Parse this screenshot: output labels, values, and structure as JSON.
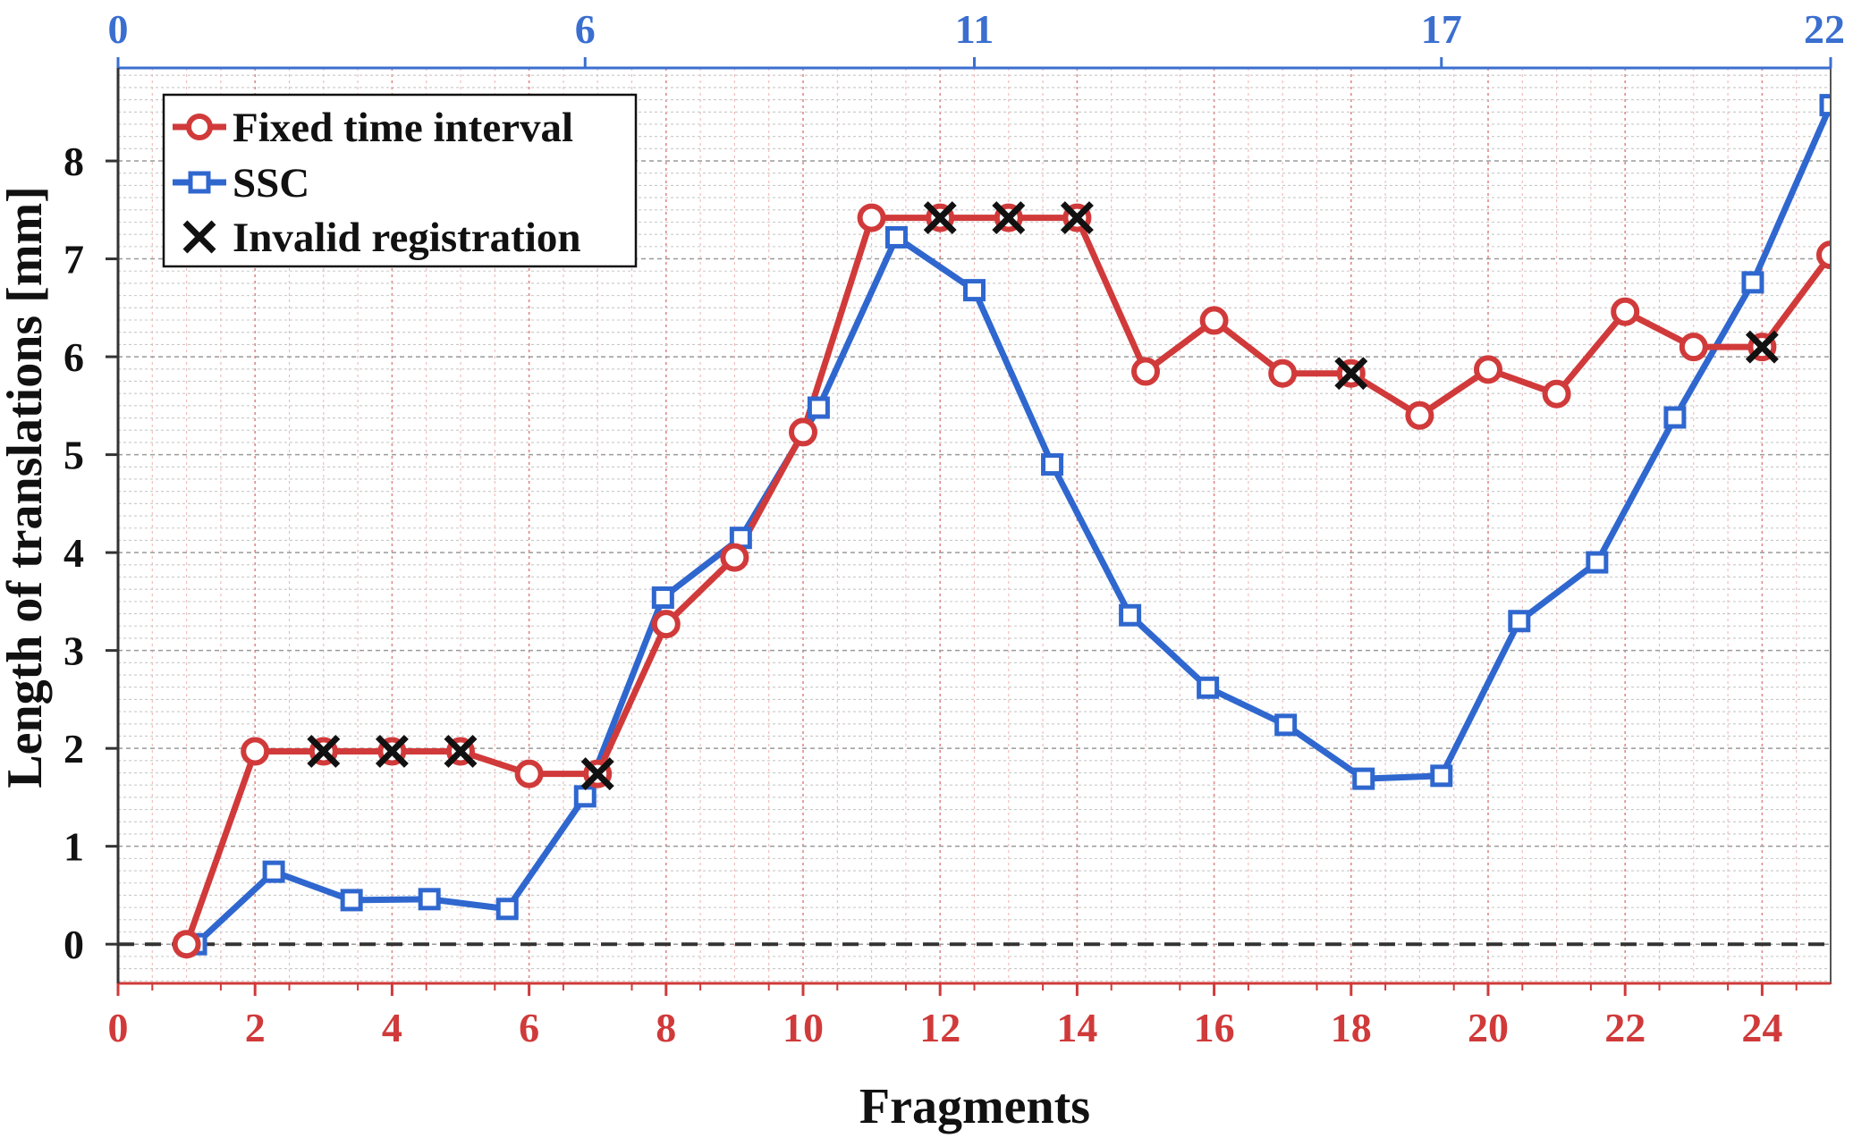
{
  "chart_data": {
    "type": "line",
    "xlabel": "Fragments",
    "ylabel": "Length of translations  [mm]",
    "xlim": [
      0,
      25
    ],
    "ylim": [
      -0.4,
      8.95
    ],
    "x_ticks": [
      0,
      2,
      4,
      6,
      8,
      10,
      12,
      14,
      16,
      18,
      20,
      22,
      24
    ],
    "y_ticks": [
      0,
      1,
      2,
      3,
      4,
      5,
      6,
      7,
      8
    ],
    "top_axis": {
      "xlim": [
        0,
        22
      ],
      "ticks": [
        0,
        6,
        11,
        17,
        22
      ]
    },
    "grid": true,
    "zero_line": true,
    "legend_position": "top-left",
    "colors": {
      "fixed": "#d13a3a",
      "ssc": "#2f67cf",
      "invalid": "#111111",
      "bottom_ticks": "#d03a3a",
      "top_ticks": "#3a6fd0"
    },
    "series": [
      {
        "name": "Fixed time interval",
        "marker": "circle",
        "axis": "bottom",
        "x": [
          1,
          2,
          3,
          4,
          5,
          6,
          7,
          8,
          9,
          10,
          11,
          12,
          13,
          14,
          15,
          16,
          17,
          18,
          19,
          20,
          21,
          22,
          23,
          24,
          25
        ],
        "values": [
          0,
          1.97,
          1.97,
          1.97,
          1.97,
          1.74,
          1.74,
          3.27,
          3.95,
          5.23,
          7.42,
          7.42,
          7.42,
          7.42,
          5.85,
          6.37,
          5.83,
          5.83,
          5.4,
          5.87,
          5.62,
          6.46,
          6.1,
          6.1,
          7.04
        ]
      },
      {
        "name": "SSC",
        "marker": "square",
        "axis": "top",
        "x": [
          1,
          2,
          3,
          4,
          5,
          6,
          7,
          8,
          9,
          10,
          11,
          12,
          13,
          14,
          15,
          16,
          17,
          18,
          19,
          20,
          21,
          22
        ],
        "values": [
          0,
          0.74,
          0.45,
          0.46,
          0.36,
          1.51,
          3.54,
          4.15,
          5.48,
          7.22,
          6.68,
          4.9,
          3.36,
          2.62,
          2.24,
          1.69,
          1.72,
          3.3,
          3.9,
          5.38,
          6.76,
          8.57
        ]
      },
      {
        "name": "Invalid registration",
        "marker": "x",
        "axis": "bottom",
        "x": [
          3,
          4,
          5,
          7,
          12,
          13,
          14,
          18,
          24
        ],
        "values": [
          1.97,
          1.97,
          1.97,
          1.74,
          7.42,
          7.42,
          7.42,
          5.83,
          6.1
        ]
      }
    ]
  }
}
